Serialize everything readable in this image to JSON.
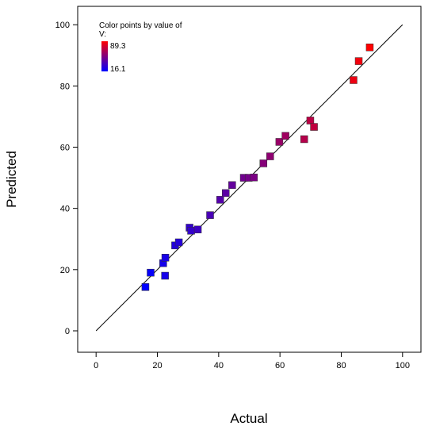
{
  "chart_data": {
    "type": "scatter",
    "xlabel": "Actual",
    "ylabel": "Predicted",
    "xlim": [
      -6,
      106
    ],
    "ylim": [
      -7,
      106
    ],
    "x_ticks": [
      0,
      20,
      40,
      60,
      80,
      100
    ],
    "y_ticks": [
      0,
      20,
      40,
      60,
      80,
      100
    ],
    "reference_line": {
      "from": [
        0,
        0
      ],
      "to": [
        100,
        100
      ]
    },
    "legend": {
      "title_line1": "Color points by value of",
      "title_line2": "V:",
      "max_label": "89.3",
      "min_label": "16.1",
      "max_color": "#ff0000",
      "min_color": "#0000ff",
      "max_value": 89.3,
      "min_value": 16.1
    },
    "points": [
      {
        "x": 16.1,
        "y": 14.3
      },
      {
        "x": 17.8,
        "y": 19.0
      },
      {
        "x": 21.9,
        "y": 22.1
      },
      {
        "x": 22.5,
        "y": 18.0
      },
      {
        "x": 22.6,
        "y": 23.9
      },
      {
        "x": 25.8,
        "y": 27.9
      },
      {
        "x": 27.0,
        "y": 28.9
      },
      {
        "x": 30.5,
        "y": 33.7
      },
      {
        "x": 31.0,
        "y": 32.7
      },
      {
        "x": 33.2,
        "y": 33.1
      },
      {
        "x": 37.2,
        "y": 37.8
      },
      {
        "x": 40.5,
        "y": 42.8
      },
      {
        "x": 42.3,
        "y": 45.0
      },
      {
        "x": 44.4,
        "y": 47.6
      },
      {
        "x": 48.2,
        "y": 50.0
      },
      {
        "x": 49.8,
        "y": 50.0
      },
      {
        "x": 51.5,
        "y": 50.1
      },
      {
        "x": 54.6,
        "y": 54.7
      },
      {
        "x": 56.8,
        "y": 57.0
      },
      {
        "x": 59.8,
        "y": 61.7
      },
      {
        "x": 61.8,
        "y": 63.7
      },
      {
        "x": 67.9,
        "y": 62.6
      },
      {
        "x": 69.9,
        "y": 68.7
      },
      {
        "x": 71.1,
        "y": 66.6
      },
      {
        "x": 84.0,
        "y": 81.9
      },
      {
        "x": 85.7,
        "y": 88.1
      },
      {
        "x": 89.3,
        "y": 92.6
      }
    ]
  }
}
